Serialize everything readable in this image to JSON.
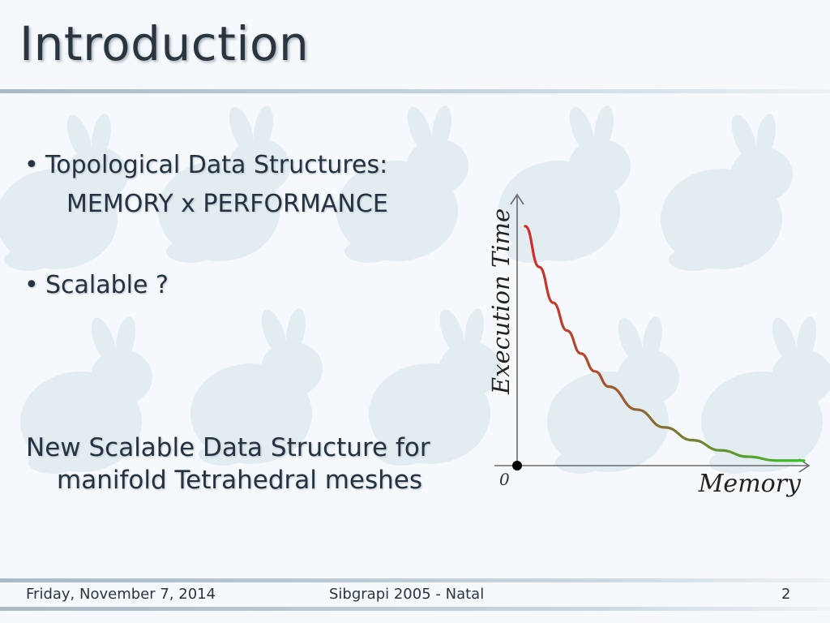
{
  "slide": {
    "title": "Introduction",
    "bullets": [
      {
        "text": "Topological Data Structures:",
        "sub": "MEMORY x PERFORMANCE"
      },
      {
        "text": "Scalable ?"
      }
    ],
    "statement": {
      "line1": "New Scalable Data Structure for",
      "line2": "manifold Tetrahedral meshes"
    }
  },
  "chart_data": {
    "type": "line",
    "xlabel": "Memory",
    "ylabel": "Execution Time",
    "origin_label": "0",
    "series": [
      {
        "x": [
          0.0,
          0.05,
          0.1,
          0.15,
          0.2,
          0.25,
          0.3,
          0.4,
          0.5,
          0.6,
          0.7,
          0.8,
          0.9,
          1.0
        ],
        "values": [
          0.94,
          0.78,
          0.64,
          0.53,
          0.44,
          0.37,
          0.31,
          0.22,
          0.15,
          0.1,
          0.06,
          0.035,
          0.02,
          0.02
        ]
      }
    ],
    "colors": {
      "start": "#d42a2a",
      "end": "#3cbf2c",
      "axis": "#6b6b6b",
      "origin": "#000000"
    }
  },
  "footer": {
    "date": "Friday, November 7, 2014",
    "conference": "Sibgrapi 2005 - Natal",
    "page": "2"
  }
}
